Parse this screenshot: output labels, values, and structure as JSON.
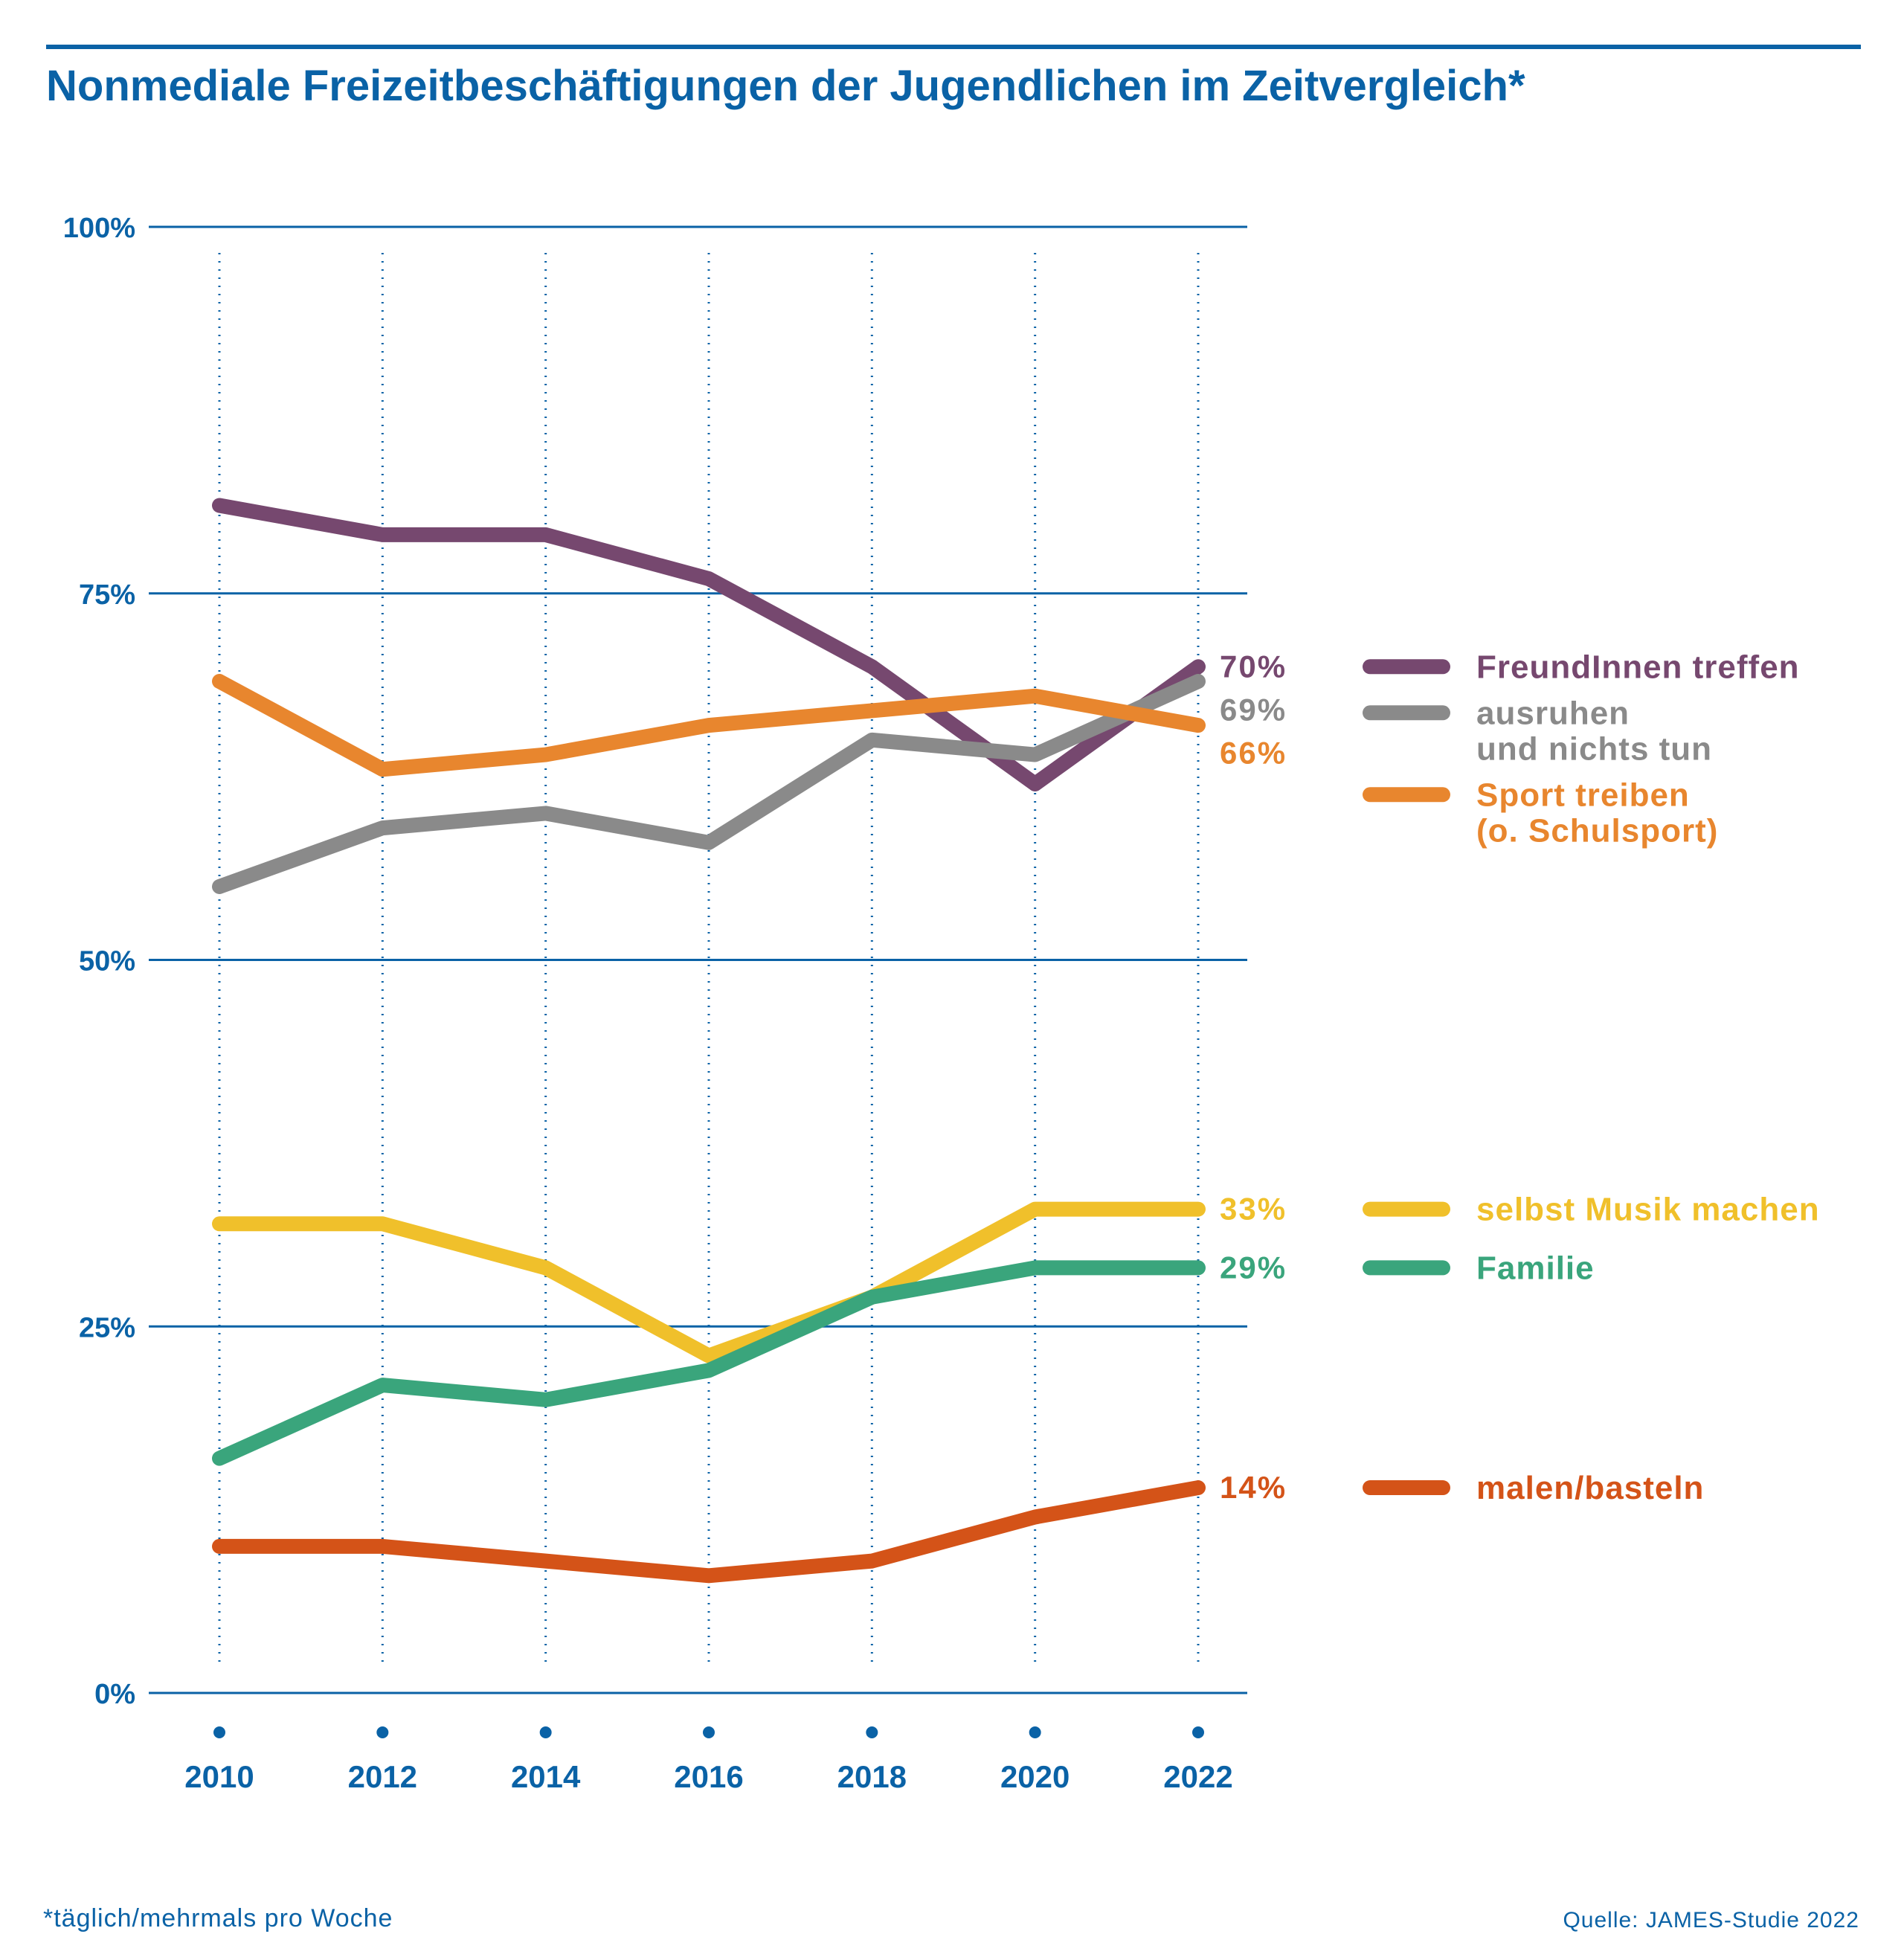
{
  "header": {
    "title": "Nonmediale Freizeitbeschäftigungen der Jugendlichen im Zeitvergleich*"
  },
  "footer": {
    "footnote": "*täglich/mehrmals pro Woche",
    "source": "Quelle: JAMES-Studie 2022"
  },
  "colors": {
    "accent": "#0a62a6"
  },
  "chart_data": {
    "type": "line",
    "title": "Nonmediale Freizeitbeschäftigungen der Jugendlichen im Zeitvergleich*",
    "xlabel": "",
    "ylabel": "",
    "x": [
      2010,
      2012,
      2014,
      2016,
      2018,
      2020,
      2022
    ],
    "x_tick_labels": [
      "2010",
      "2012",
      "2014",
      "2016",
      "2018",
      "2020",
      "2022"
    ],
    "ylim": [
      0,
      100
    ],
    "y_ticks": [
      0,
      25,
      50,
      75,
      100
    ],
    "y_tick_labels": [
      "0%",
      "25%",
      "50%",
      "75%",
      "100%"
    ],
    "grid": "horizontal solid at y ticks, vertical dotted at x ticks",
    "legend_placement": "right",
    "series": [
      {
        "name": "FreundInnen treffen",
        "legend_lines": [
          "FreundInnen treffen"
        ],
        "color": "#76486f",
        "values": [
          81,
          79,
          79,
          76,
          70,
          62,
          70
        ],
        "end_label": "70%"
      },
      {
        "name": "ausruhen und nichts tun",
        "legend_lines": [
          "ausruhen",
          "und nichts tun"
        ],
        "color": "#8a8a8a",
        "values": [
          55,
          59,
          60,
          58,
          65,
          64,
          69
        ],
        "end_label": "69%"
      },
      {
        "name": "Sport treiben (o. Schulsport)",
        "legend_lines": [
          "Sport treiben",
          "(o. Schulsport)"
        ],
        "color": "#e8862e",
        "values": [
          69,
          63,
          64,
          66,
          67,
          68,
          66
        ],
        "end_label": "66%"
      },
      {
        "name": "selbst Musik machen",
        "legend_lines": [
          "selbst Musik machen"
        ],
        "color": "#f0c02b",
        "values": [
          32,
          32,
          29,
          23,
          27,
          33,
          33
        ],
        "end_label": "33%"
      },
      {
        "name": "Familie",
        "legend_lines": [
          "Familie"
        ],
        "color": "#3aa57c",
        "values": [
          16,
          21,
          20,
          22,
          27,
          29,
          29
        ],
        "end_label": "29%"
      },
      {
        "name": "malen/basteln",
        "legend_lines": [
          "malen/basteln"
        ],
        "color": "#d45318",
        "values": [
          10,
          10,
          9,
          8,
          9,
          12,
          14
        ],
        "end_label": "14%"
      }
    ]
  }
}
